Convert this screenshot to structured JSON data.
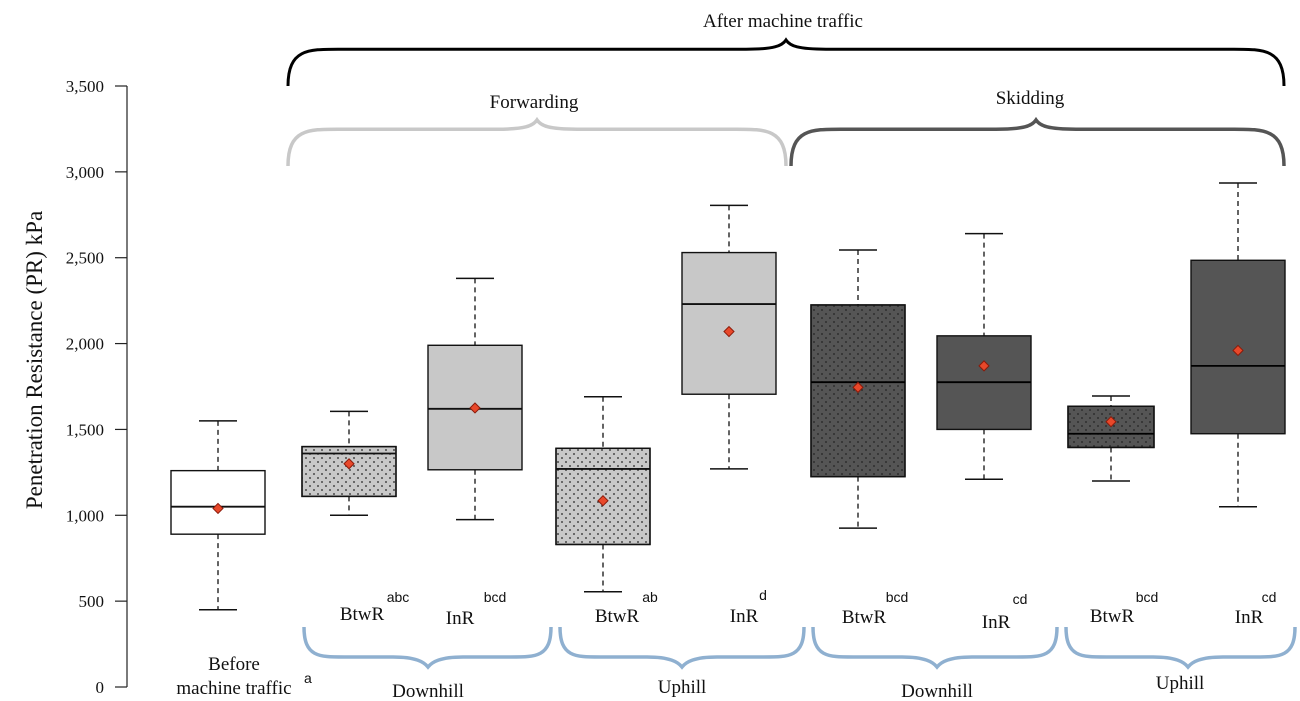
{
  "chart_data": {
    "type": "box",
    "title": "After machine traffic",
    "ylabel": "Penetration Resistance (PR) kPa",
    "ylim": [
      0,
      3500
    ],
    "yticks": [
      "0",
      "500",
      "1,000",
      "1,500",
      "2,000",
      "2,500",
      "3,000",
      "3,500"
    ],
    "ytick_values": [
      0,
      500,
      1000,
      1500,
      2000,
      2500,
      3000,
      3500
    ],
    "operations": [
      {
        "label": "Forwarding",
        "color": "#c8c8c8"
      },
      {
        "label": "Skidding",
        "color": "#555555"
      }
    ],
    "slope_groups": [
      "Downhill",
      "Uphill",
      "Downhill",
      "Uphill"
    ],
    "before": {
      "label": "Before machine traffic",
      "sig": "a"
    },
    "boxes": [
      {
        "category": "Before machine traffic",
        "sig": "a",
        "fill": "#ffffff",
        "dotted": false,
        "min": 450,
        "q1": 890,
        "median": 1050,
        "q3": 1260,
        "max": 1550,
        "mean": 1040
      },
      {
        "category": "BtwR",
        "sig": "abc",
        "fill": "#c8c8c8",
        "dotted": true,
        "min": 1000,
        "q1": 1110,
        "median": 1360,
        "q3": 1400,
        "max": 1605,
        "mean": 1300
      },
      {
        "category": "InR",
        "sig": "bcd",
        "fill": "#c8c8c8",
        "dotted": false,
        "min": 975,
        "q1": 1265,
        "median": 1620,
        "q3": 1990,
        "max": 2380,
        "mean": 1625
      },
      {
        "category": "BtwR",
        "sig": "ab",
        "fill": "#c8c8c8",
        "dotted": true,
        "min": 555,
        "q1": 830,
        "median": 1270,
        "q3": 1390,
        "max": 1690,
        "mean": 1085
      },
      {
        "category": "InR",
        "sig": "d",
        "fill": "#c8c8c8",
        "dotted": false,
        "min": 1270,
        "q1": 1705,
        "median": 2230,
        "q3": 2530,
        "max": 2805,
        "mean": 2070
      },
      {
        "category": "BtwR",
        "sig": "bcd",
        "fill": "#555555",
        "dotted": true,
        "min": 925,
        "q1": 1225,
        "median": 1775,
        "q3": 2225,
        "max": 2545,
        "mean": 1745
      },
      {
        "category": "InR",
        "sig": "cd",
        "fill": "#555555",
        "dotted": false,
        "min": 1210,
        "q1": 1500,
        "median": 1775,
        "q3": 2045,
        "max": 2640,
        "mean": 1870
      },
      {
        "category": "BtwR",
        "sig": "bcd",
        "fill": "#555555",
        "dotted": true,
        "min": 1200,
        "q1": 1395,
        "median": 1475,
        "q3": 1635,
        "max": 1695,
        "mean": 1545
      },
      {
        "category": "InR",
        "sig": "cd",
        "fill": "#555555",
        "dotted": false,
        "min": 1050,
        "q1": 1475,
        "median": 1870,
        "q3": 2485,
        "max": 2935,
        "mean": 1960
      }
    ],
    "mean_marker_color": "#e8482a",
    "slope_brace_color": "#8fb0d0"
  }
}
